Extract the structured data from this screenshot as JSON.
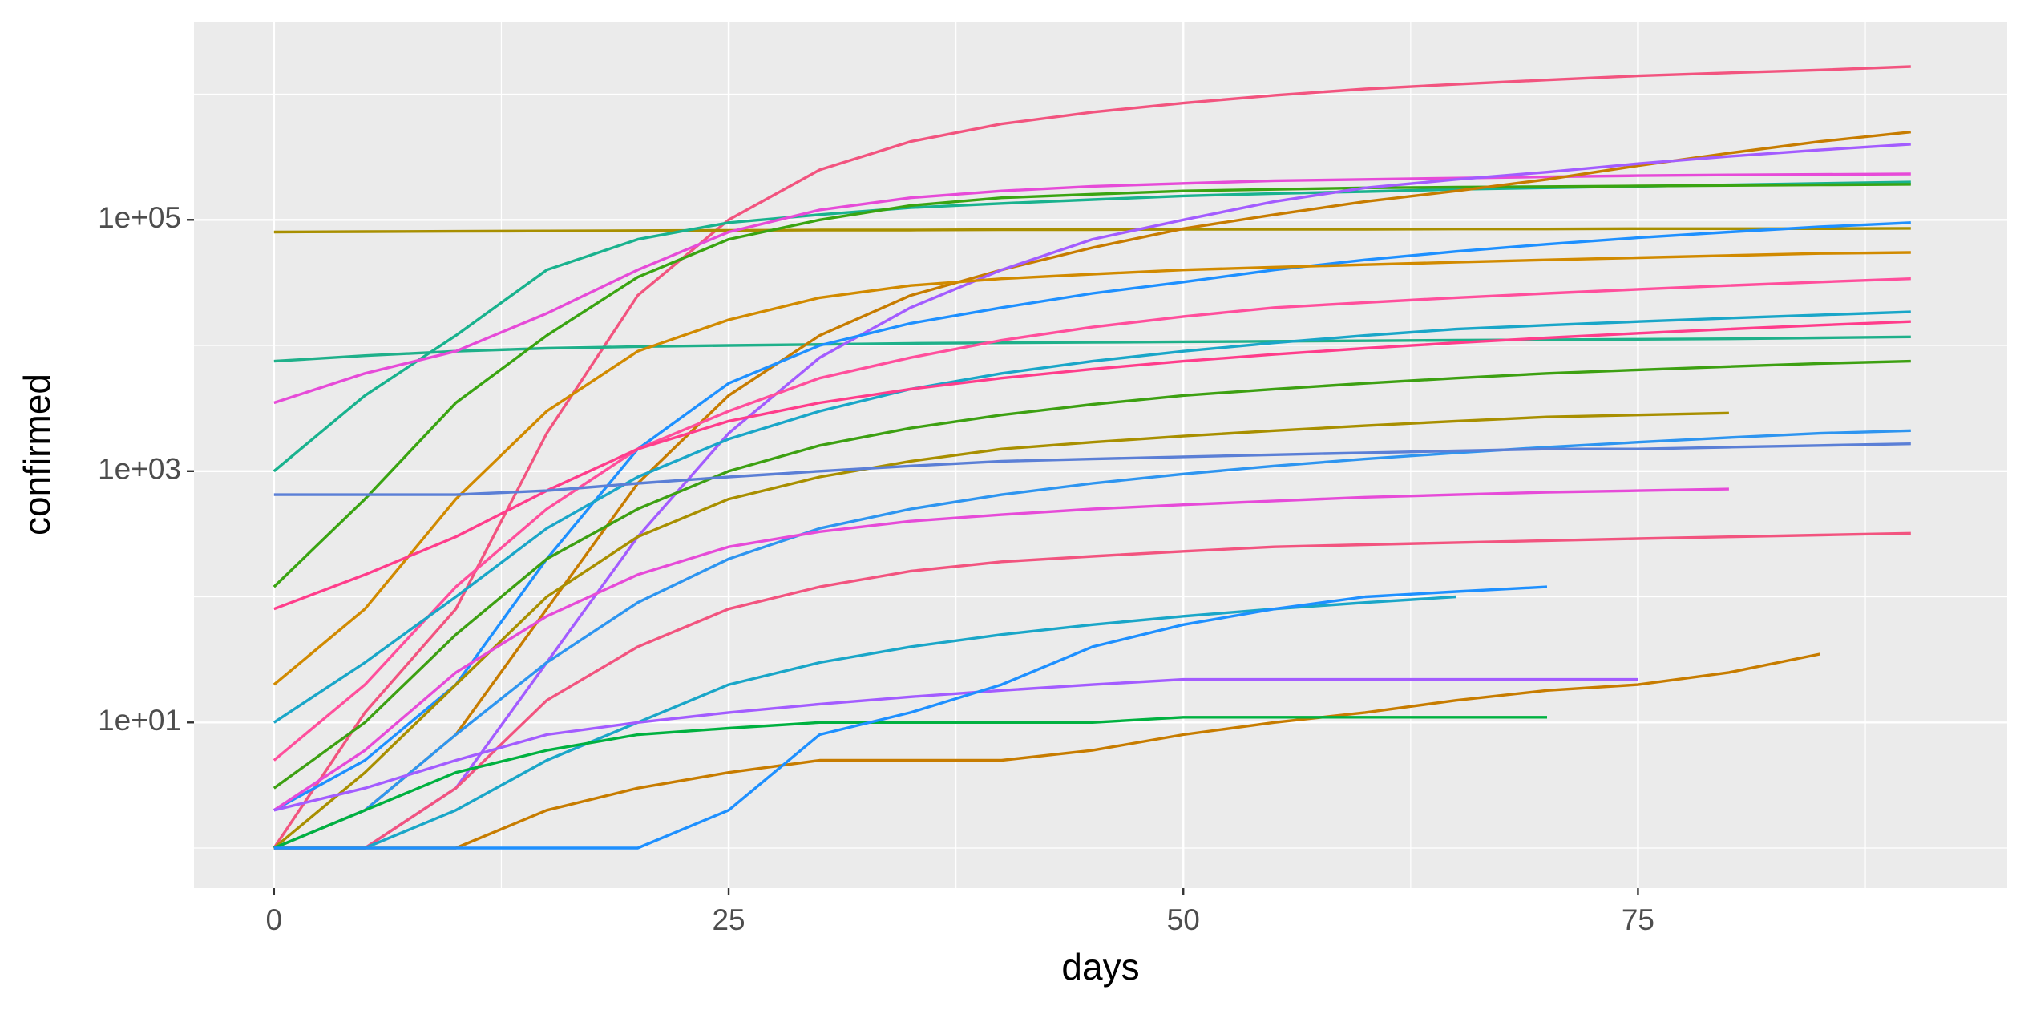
{
  "chart_data": {
    "type": "line",
    "x_label": "days",
    "y_label": "confirmed",
    "log_y": true,
    "grid": true,
    "xlim": [
      -4.4,
      95.3
    ],
    "xticks": [
      0,
      25,
      50,
      75
    ],
    "ylim": [
      0.48,
      3780000
    ],
    "yticks": [
      {
        "value": 10,
        "label": "1e+01"
      },
      {
        "value": 1000,
        "label": "1e+03"
      },
      {
        "value": 100000,
        "label": "1e+05"
      }
    ],
    "x": [
      0,
      5,
      10,
      15,
      20,
      25,
      30,
      35,
      40,
      45,
      50,
      55,
      60,
      65,
      70,
      75,
      80,
      85,
      90
    ],
    "series": [
      {
        "color": "#F2547F",
        "values": [
          1,
          12,
          80,
          2000,
          25000,
          100000,
          250000,
          420000,
          580000,
          720000,
          850000,
          980000,
          1100000,
          1200000,
          1300000,
          1400000,
          1480000,
          1560000,
          1660000
        ]
      },
      {
        "color": "#A88F00",
        "values": [
          80000,
          80500,
          81000,
          81500,
          82000,
          82500,
          83000,
          83000,
          83500,
          83500,
          84000,
          84000,
          84000,
          84500,
          84500,
          85000,
          85000,
          85000,
          85500
        ]
      },
      {
        "color": "#1FB08A",
        "values": [
          7500,
          8300,
          9000,
          9500,
          9800,
          10000,
          10200,
          10400,
          10500,
          10600,
          10700,
          10800,
          10900,
          11000,
          11100,
          11200,
          11300,
          11500,
          11700
        ]
      },
      {
        "color": "#19B28E",
        "values": [
          1000,
          4000,
          12000,
          40000,
          70000,
          95000,
          110000,
          125000,
          135000,
          145000,
          155000,
          162000,
          168000,
          175000,
          180000,
          185000,
          190000,
          195000,
          200000
        ]
      },
      {
        "color": "#3AA412",
        "values": [
          120,
          600,
          3500,
          12000,
          35000,
          70000,
          100000,
          130000,
          150000,
          160000,
          170000,
          175000,
          180000,
          182000,
          184000,
          186000,
          188000,
          190000,
          192000
        ]
      },
      {
        "color": "#E64BD8",
        "values": [
          3500,
          6000,
          9000,
          18000,
          40000,
          80000,
          120000,
          150000,
          170000,
          185000,
          195000,
          205000,
          210000,
          215000,
          220000,
          225000,
          228000,
          230000,
          232000
        ]
      },
      {
        "color": "#C77C00",
        "values": [
          1,
          2,
          8,
          80,
          800,
          4000,
          12000,
          25000,
          40000,
          60000,
          85000,
          110000,
          140000,
          170000,
          210000,
          270000,
          340000,
          420000,
          500000
        ]
      },
      {
        "color": "#A35CFF",
        "values": [
          1,
          1,
          3,
          30,
          300,
          2000,
          8000,
          20000,
          40000,
          70000,
          100000,
          140000,
          180000,
          210000,
          240000,
          280000,
          320000,
          360000,
          400000
        ]
      },
      {
        "color": "#1E90FF",
        "values": [
          2,
          5,
          20,
          200,
          1500,
          5000,
          10000,
          15000,
          20000,
          26000,
          32000,
          40000,
          48000,
          56000,
          64000,
          72000,
          80000,
          88000,
          95000
        ]
      },
      {
        "color": "#D18A00",
        "values": [
          20,
          80,
          600,
          3000,
          9000,
          16000,
          24000,
          30000,
          34000,
          37000,
          40000,
          42000,
          44000,
          46000,
          48000,
          50000,
          52000,
          54000,
          55000
        ]
      },
      {
        "color": "#FF4F9C",
        "values": [
          5,
          20,
          120,
          500,
          1500,
          3000,
          5500,
          8000,
          11000,
          14000,
          17000,
          20000,
          22000,
          24000,
          26000,
          28000,
          30000,
          32000,
          34000
        ]
      },
      {
        "color": "#1AA6C8",
        "values": [
          10,
          30,
          100,
          350,
          900,
          1800,
          3000,
          4500,
          6000,
          7500,
          9000,
          10500,
          12000,
          13500,
          14500,
          15500,
          16500,
          17500,
          18500
        ]
      },
      {
        "color": "#3DA012",
        "values": [
          3,
          10,
          50,
          200,
          500,
          1000,
          1600,
          2200,
          2800,
          3400,
          4000,
          4500,
          5000,
          5500,
          6000,
          6400,
          6800,
          7200,
          7500
        ]
      },
      {
        "color": "#A88F00",
        "values": [
          1,
          4,
          20,
          100,
          300,
          600,
          900,
          1200,
          1500,
          1700,
          1900,
          2100,
          2300,
          2500,
          2700,
          2800,
          2900,
          null,
          null
        ]
      },
      {
        "color": "#2E95F0",
        "values": [
          1,
          2,
          8,
          30,
          90,
          200,
          350,
          500,
          650,
          800,
          950,
          1100,
          1250,
          1400,
          1550,
          1700,
          1850,
          2000,
          2100
        ]
      },
      {
        "color": "#E64BD8",
        "values": [
          2,
          6,
          25,
          70,
          150,
          250,
          330,
          400,
          450,
          500,
          540,
          580,
          620,
          650,
          680,
          700,
          720,
          null,
          null
        ]
      },
      {
        "color": "#F2547F",
        "values": [
          1,
          1,
          3,
          15,
          40,
          80,
          120,
          160,
          190,
          210,
          230,
          250,
          260,
          270,
          280,
          290,
          300,
          310,
          320
        ]
      },
      {
        "color": "#1AA6C8",
        "values": [
          1,
          1,
          2,
          5,
          10,
          20,
          30,
          40,
          50,
          60,
          70,
          80,
          90,
          100,
          null,
          null,
          null,
          null,
          null
        ]
      },
      {
        "color": "#C77C00",
        "values": [
          1,
          1,
          1,
          2,
          3,
          4,
          5,
          5,
          5,
          6,
          8,
          10,
          12,
          15,
          18,
          20,
          25,
          35,
          null
        ]
      },
      {
        "color": "#A35CFF",
        "values": [
          2,
          3,
          5,
          8,
          10,
          12,
          14,
          16,
          18,
          20,
          22,
          22,
          22,
          22,
          22,
          22,
          null,
          null,
          null
        ]
      },
      {
        "color": "#00B140",
        "values": [
          1,
          2,
          4,
          6,
          8,
          9,
          10,
          10,
          10,
          10,
          11,
          11,
          11,
          11,
          11,
          null,
          null,
          null,
          null
        ]
      },
      {
        "color": "#1E90FF",
        "values": [
          1,
          1,
          1,
          1,
          1,
          2,
          8,
          12,
          20,
          40,
          60,
          80,
          100,
          110,
          120,
          null,
          null,
          null,
          null
        ]
      },
      {
        "color": "#FF3D8B",
        "values": [
          80,
          150,
          300,
          700,
          1500,
          2500,
          3500,
          4500,
          5500,
          6500,
          7500,
          8500,
          9500,
          10500,
          11500,
          12500,
          13500,
          14500,
          15500
        ]
      },
      {
        "color": "#5B7FD6",
        "values": [
          650,
          650,
          650,
          700,
          800,
          900,
          1000,
          1100,
          1200,
          1250,
          1300,
          1350,
          1400,
          1450,
          1500,
          1500,
          1550,
          1600,
          1650
        ]
      }
    ]
  }
}
